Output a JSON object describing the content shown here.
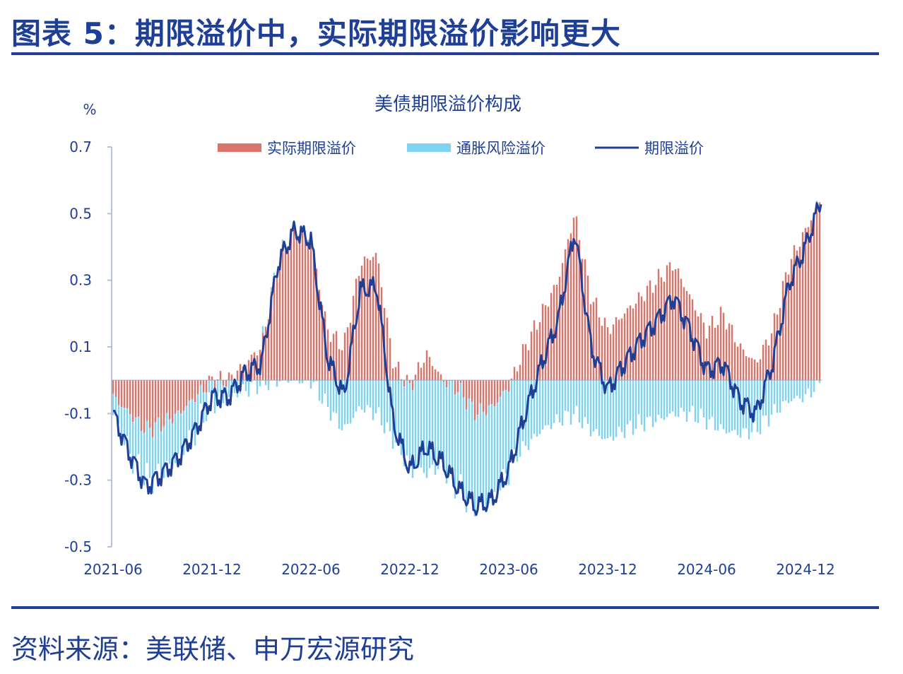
{
  "figure": {
    "title": "图表 5：期限溢价中，实际期限溢价影响更大",
    "source": "资料来源：美联储、申万宏源研究"
  },
  "colors": {
    "real": "#d9756b",
    "inflation": "#7fd3f2",
    "line": "#1f3f96",
    "axis": "#b8c4d6",
    "text": "#1f3f96"
  },
  "chart_data": {
    "type": "bar",
    "title": "美债期限溢价构成",
    "ylabel": "%",
    "ylim": [
      -0.5,
      0.7
    ],
    "yticks": [
      "-0.5",
      "-0.3",
      "-0.1",
      "0.1",
      "0.3",
      "0.5",
      "0.7"
    ],
    "xticks": [
      "2021-06",
      "2021-12",
      "2022-06",
      "2022-12",
      "2023-06",
      "2023-12",
      "2024-06",
      "2024-12"
    ],
    "legend": [
      "实际期限溢价",
      "通胀风险溢价",
      "期限溢价"
    ],
    "legend_position": "top",
    "x": [
      "2021-06",
      "2021-07",
      "2021-08",
      "2021-09",
      "2021-10",
      "2021-11",
      "2021-12",
      "2022-01",
      "2022-02",
      "2022-03",
      "2022-04",
      "2022-05",
      "2022-06",
      "2022-07",
      "2022-08",
      "2022-09",
      "2022-10",
      "2022-11",
      "2022-12",
      "2023-01",
      "2023-02",
      "2023-03",
      "2023-04",
      "2023-05",
      "2023-06",
      "2023-07",
      "2023-08",
      "2023-09",
      "2023-10",
      "2023-11",
      "2023-12",
      "2024-01",
      "2024-02",
      "2024-03",
      "2024-04",
      "2024-05",
      "2024-06",
      "2024-07",
      "2024-08",
      "2024-09",
      "2024-10",
      "2024-11",
      "2024-12",
      "2025-01"
    ],
    "series": [
      {
        "name": "实际期限溢价",
        "type": "bar",
        "values": [
          -0.05,
          -0.1,
          -0.15,
          -0.13,
          -0.1,
          -0.05,
          0.0,
          0.0,
          0.05,
          0.1,
          0.35,
          0.45,
          0.42,
          0.15,
          0.1,
          0.35,
          0.38,
          0.05,
          -0.02,
          0.08,
          0.0,
          -0.03,
          -0.1,
          -0.08,
          -0.02,
          0.1,
          0.2,
          0.3,
          0.5,
          0.25,
          0.15,
          0.2,
          0.25,
          0.3,
          0.35,
          0.25,
          0.15,
          0.2,
          0.1,
          0.05,
          0.15,
          0.35,
          0.45,
          0.55
        ]
      },
      {
        "name": "通胀风险溢价",
        "type": "bar",
        "values": [
          -0.05,
          -0.12,
          -0.15,
          -0.15,
          -0.13,
          -0.1,
          -0.05,
          -0.05,
          -0.03,
          -0.01,
          0.0,
          0.0,
          0.0,
          -0.08,
          -0.15,
          -0.08,
          -0.1,
          -0.18,
          -0.25,
          -0.28,
          -0.25,
          -0.3,
          -0.28,
          -0.28,
          -0.25,
          -0.2,
          -0.15,
          -0.12,
          -0.1,
          -0.15,
          -0.18,
          -0.15,
          -0.13,
          -0.12,
          -0.1,
          -0.1,
          -0.12,
          -0.15,
          -0.16,
          -0.15,
          -0.1,
          -0.06,
          -0.05,
          0.0
        ]
      },
      {
        "name": "期限溢价",
        "type": "line",
        "values": [
          -0.1,
          -0.22,
          -0.32,
          -0.28,
          -0.23,
          -0.15,
          -0.05,
          -0.05,
          0.02,
          0.05,
          0.35,
          0.45,
          0.42,
          0.07,
          -0.05,
          0.27,
          0.28,
          -0.13,
          -0.27,
          -0.2,
          -0.25,
          -0.33,
          -0.38,
          -0.36,
          -0.27,
          -0.1,
          0.05,
          0.18,
          0.45,
          0.1,
          -0.03,
          0.05,
          0.12,
          0.18,
          0.25,
          0.15,
          0.03,
          0.05,
          -0.06,
          -0.1,
          0.05,
          0.29,
          0.4,
          0.55
        ]
      }
    ]
  }
}
